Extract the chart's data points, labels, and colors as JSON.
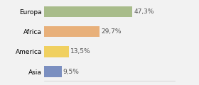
{
  "categories": [
    "Europa",
    "Africa",
    "America",
    "Asia"
  ],
  "values": [
    47.3,
    29.7,
    13.5,
    9.5
  ],
  "labels": [
    "47,3%",
    "29,7%",
    "13,5%",
    "9,5%"
  ],
  "bar_colors": [
    "#a8bc8a",
    "#e8b07a",
    "#f0d060",
    "#7b8fc0"
  ],
  "background_color": "#f2f2f2",
  "xlim": [
    0,
    70
  ],
  "label_fontsize": 6.5,
  "tick_fontsize": 6.5,
  "bar_height": 0.55
}
